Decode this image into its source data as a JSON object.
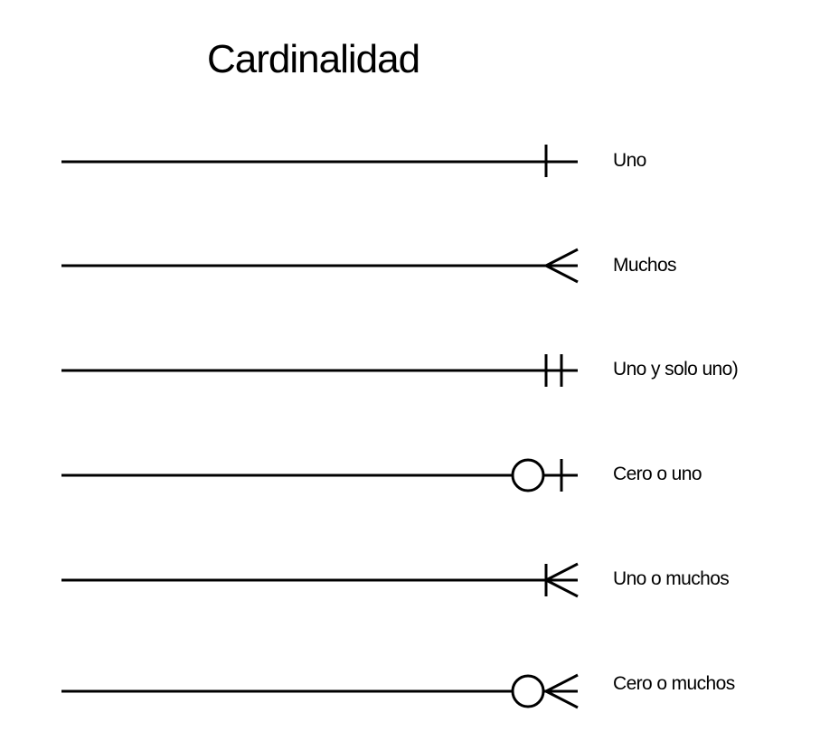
{
  "title": "Cardinalidad",
  "notations": [
    {
      "symbol": "one",
      "label": "Uno"
    },
    {
      "symbol": "many",
      "label": "Muchos"
    },
    {
      "symbol": "one-and-only-one",
      "label": "Uno y solo uno)"
    },
    {
      "symbol": "zero-or-one",
      "label": "Cero o uno"
    },
    {
      "symbol": "one-or-many",
      "label": "Uno o muchos"
    },
    {
      "symbol": "zero-or-many",
      "label": "Cero o muchos"
    }
  ],
  "colors": {
    "line": "#000000",
    "background": "#ffffff"
  }
}
